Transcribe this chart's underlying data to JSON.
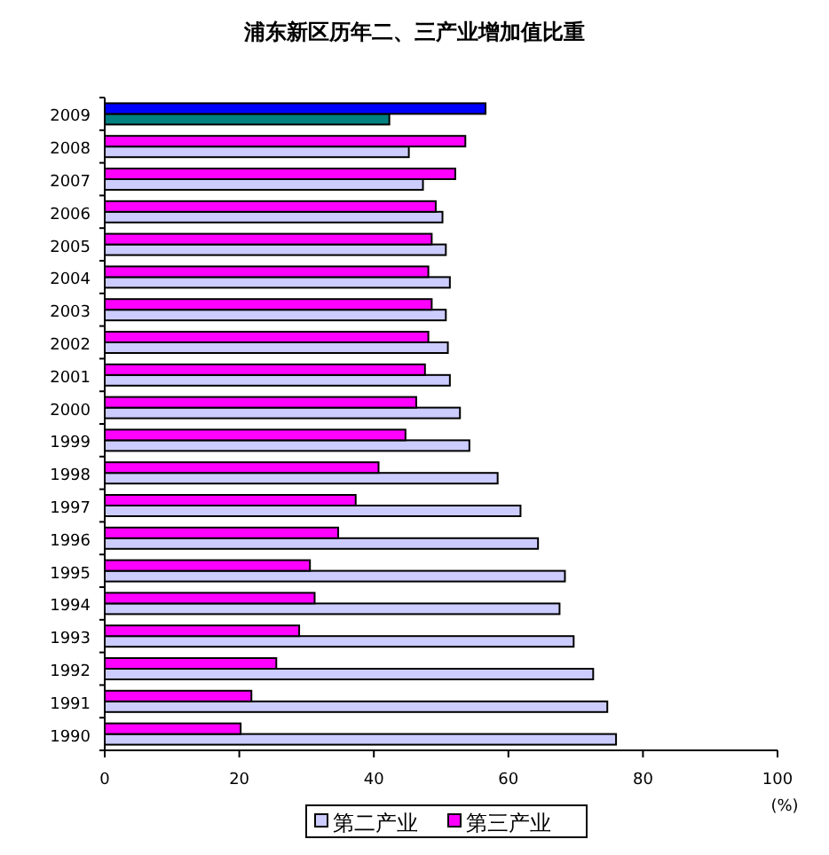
{
  "chart_data": {
    "type": "bar",
    "orientation": "horizontal",
    "title": "浦东新区历年二、三产业增加值比重",
    "xlabel": "(%)",
    "categories": [
      "2009",
      "2008",
      "2007",
      "2006",
      "2005",
      "2004",
      "2003",
      "2002",
      "2001",
      "2000",
      "1999",
      "1998",
      "1997",
      "1996",
      "1995",
      "1994",
      "1993",
      "1992",
      "1991",
      "1990"
    ],
    "series": [
      {
        "name": "第二产业",
        "color": "#ccccff",
        "colors": [
          "#008080",
          "#ccccff",
          "#ccccff",
          "#ccccff",
          "#ccccff",
          "#ccccff",
          "#ccccff",
          "#ccccff",
          "#ccccff",
          "#ccccff",
          "#ccccff",
          "#ccccff",
          "#ccccff",
          "#ccccff",
          "#ccccff",
          "#ccccff",
          "#ccccff",
          "#ccccff",
          "#ccccff",
          "#ccccff"
        ],
        "values": [
          42.3,
          45.2,
          47.3,
          50.2,
          50.7,
          51.3,
          50.7,
          51.0,
          51.3,
          52.8,
          54.2,
          58.4,
          61.8,
          64.4,
          68.4,
          67.6,
          69.7,
          72.6,
          74.7,
          76.0
        ]
      },
      {
        "name": "第三产业",
        "color": "#ff00ff",
        "colors": [
          "#0000ff",
          "#ff00ff",
          "#ff00ff",
          "#ff00ff",
          "#ff00ff",
          "#ff00ff",
          "#ff00ff",
          "#ff00ff",
          "#ff00ff",
          "#ff00ff",
          "#ff00ff",
          "#ff00ff",
          "#ff00ff",
          "#ff00ff",
          "#ff00ff",
          "#ff00ff",
          "#ff00ff",
          "#ff00ff",
          "#ff00ff",
          "#ff00ff"
        ],
        "values": [
          56.6,
          53.6,
          52.1,
          49.2,
          48.6,
          48.1,
          48.6,
          48.1,
          47.6,
          46.3,
          44.7,
          40.7,
          37.3,
          34.7,
          30.5,
          31.2,
          28.9,
          25.5,
          21.8,
          20.2
        ]
      }
    ],
    "xlim": [
      0,
      100
    ],
    "xticks": [
      0,
      20,
      40,
      60,
      80,
      100
    ],
    "legend": "bottom"
  }
}
